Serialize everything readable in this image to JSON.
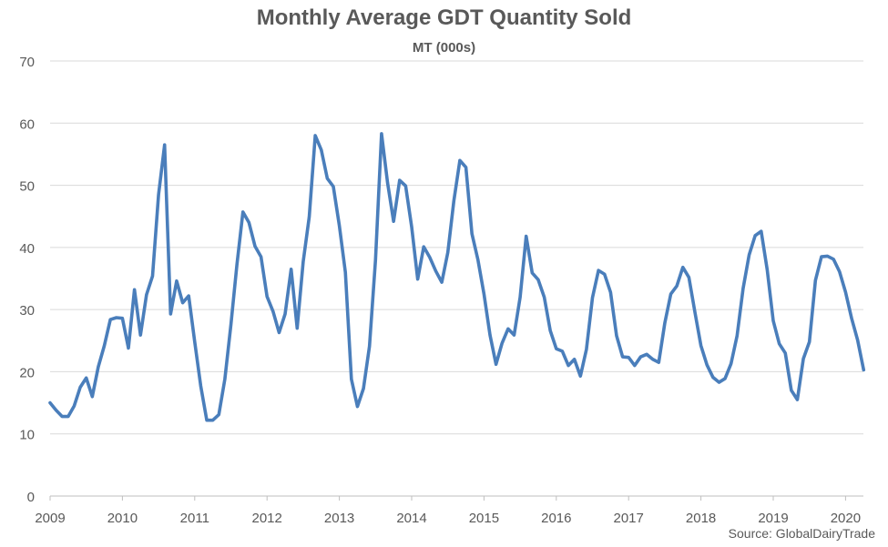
{
  "chart_data": {
    "type": "line",
    "title": "Monthly Average GDT Quantity Sold",
    "subtitle": "MT (000s)",
    "source": "Source: GlobalDairyTrade",
    "xlabel": "",
    "ylabel": "",
    "ylim": [
      0,
      70
    ],
    "yticks": [
      0,
      10,
      20,
      30,
      40,
      50,
      60,
      70
    ],
    "xticks": [
      "2009",
      "2010",
      "2011",
      "2012",
      "2013",
      "2014",
      "2015",
      "2016",
      "2017",
      "2018",
      "2019",
      "2020"
    ],
    "x_start": "2009-01",
    "grid": true,
    "line_color": "#4a7ebb",
    "series": [
      {
        "values": [
          15.0,
          13.8,
          12.8,
          12.8,
          14.5,
          17.5,
          19.0,
          16.0,
          20.8,
          24.2,
          28.4,
          28.7,
          28.6,
          23.8,
          33.2,
          25.9,
          32.4,
          35.4,
          48.5,
          56.5,
          29.3,
          34.6,
          31.1,
          32.2,
          24.8,
          17.7,
          12.2,
          12.2,
          13.1,
          18.8,
          27.5,
          37.2,
          45.7,
          44.0,
          40.2,
          38.5,
          32.1,
          29.7,
          26.3,
          29.3,
          36.5,
          27.0,
          37.7,
          44.9,
          58.0,
          55.7,
          51.1,
          49.8,
          43.5,
          36.0,
          18.8,
          14.4,
          17.3,
          24.1,
          38.0,
          58.3,
          50.4,
          44.2,
          50.8,
          49.9,
          43.3,
          34.9,
          40.1,
          38.4,
          36.2,
          34.4,
          39.2,
          47.5,
          54.0,
          52.9,
          42.2,
          38.0,
          32.5,
          25.9,
          21.2,
          24.6,
          26.9,
          25.9,
          32.0,
          41.8,
          35.9,
          34.8,
          32.0,
          26.6,
          23.7,
          23.3,
          21.0,
          22.0,
          19.3,
          23.6,
          31.9,
          36.3,
          35.7,
          32.8,
          25.8,
          22.4,
          22.3,
          21.0,
          22.4,
          22.8,
          22.0,
          21.5,
          27.8,
          32.5,
          33.8,
          36.8,
          35.2,
          29.6,
          24.2,
          21.1,
          19.1,
          18.3,
          18.9,
          21.3,
          25.8,
          33.4,
          38.8,
          41.9,
          42.6,
          36.4,
          28.2,
          24.5,
          23.0,
          17.0,
          15.5,
          22.1,
          24.8,
          34.7,
          38.5,
          38.6,
          38.1,
          36.1,
          32.8,
          28.6,
          25.1,
          20.3
        ]
      }
    ]
  }
}
